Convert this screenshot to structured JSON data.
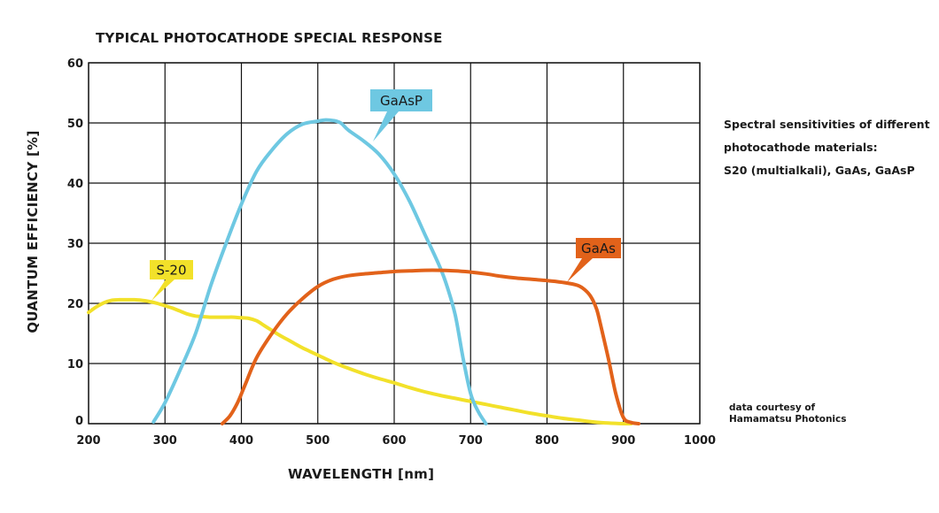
{
  "chart_data": {
    "type": "line",
    "title": "TYPICAL PHOTOCATHODE SPECIAL RESPONSE",
    "xlabel": "WAVELENGTH  [nm]",
    "ylabel": "QUANTUM EFFICIENCY  [%]",
    "xlim": [
      200,
      1000
    ],
    "ylim": [
      0,
      60
    ],
    "x_ticks": [
      "200",
      "300",
      "400",
      "500",
      "600",
      "700",
      "800",
      "900",
      "1000"
    ],
    "y_ticks": [
      "0",
      "10",
      "20",
      "30",
      "40",
      "50",
      "60"
    ],
    "grid": true,
    "legend": "callout labels on curves",
    "series": [
      {
        "name": "S-20",
        "color": "#f2e12a",
        "label_color": "#f2e12a",
        "label_text_color": "#1a1a1a",
        "x": [
          200,
          210,
          220,
          230,
          240,
          250,
          260,
          270,
          280,
          290,
          300,
          310,
          320,
          330,
          340,
          350,
          360,
          370,
          380,
          390,
          400,
          410,
          420,
          430,
          440,
          450,
          460,
          470,
          480,
          490,
          500,
          520,
          540,
          560,
          580,
          600,
          620,
          640,
          660,
          680,
          700,
          720,
          740,
          760,
          780,
          800,
          820,
          840,
          860,
          880,
          900,
          910
        ],
        "y": [
          18.5,
          19.4,
          20.1,
          20.5,
          20.6,
          20.6,
          20.6,
          20.5,
          20.3,
          20.0,
          19.6,
          19.2,
          18.7,
          18.2,
          17.9,
          17.8,
          17.7,
          17.7,
          17.7,
          17.7,
          17.6,
          17.5,
          17.1,
          16.3,
          15.5,
          14.7,
          14.0,
          13.3,
          12.6,
          12.0,
          11.4,
          10.2,
          9.2,
          8.3,
          7.5,
          6.8,
          6.0,
          5.3,
          4.7,
          4.2,
          3.7,
          3.2,
          2.7,
          2.2,
          1.7,
          1.3,
          0.9,
          0.6,
          0.3,
          0.1,
          0.0,
          0.0
        ]
      },
      {
        "name": "GaAsP",
        "color": "#6ec8e2",
        "label_color": "#6ec8e2",
        "label_text_color": "#1a1a1a",
        "x": [
          285,
          300,
          320,
          340,
          360,
          380,
          400,
          420,
          440,
          460,
          480,
          500,
          510,
          520,
          530,
          540,
          560,
          580,
          600,
          620,
          640,
          660,
          670,
          680,
          690,
          700,
          710,
          720
        ],
        "y": [
          0.3,
          3.5,
          9.0,
          15.0,
          23.0,
          30.0,
          36.5,
          42.0,
          45.5,
          48.2,
          49.8,
          50.3,
          50.5,
          50.4,
          50.0,
          48.8,
          47.0,
          44.8,
          41.5,
          37.0,
          31.5,
          26.0,
          22.5,
          18.0,
          11.0,
          5.0,
          2.0,
          0.0
        ]
      },
      {
        "name": "GaAs",
        "color": "#e2621a",
        "label_color": "#e2621a",
        "label_text_color": "#1a1a1a",
        "x": [
          375,
          385,
          395,
          405,
          420,
          440,
          460,
          480,
          500,
          520,
          540,
          560,
          580,
          600,
          620,
          640,
          660,
          680,
          700,
          720,
          740,
          760,
          780,
          800,
          820,
          840,
          850,
          858,
          865,
          870,
          880,
          890,
          900,
          910,
          920
        ],
        "y": [
          0.0,
          1.3,
          3.5,
          6.5,
          11.0,
          15.0,
          18.3,
          20.8,
          22.8,
          24.0,
          24.6,
          24.9,
          25.1,
          25.3,
          25.4,
          25.5,
          25.5,
          25.4,
          25.2,
          24.9,
          24.5,
          24.2,
          24.0,
          23.8,
          23.5,
          23.0,
          22.2,
          21.0,
          19.0,
          16.5,
          11.0,
          5.0,
          1.0,
          0.2,
          0.0
        ]
      }
    ],
    "annotations": {
      "caption": [
        "Spectral sensitivities of different",
        "photocathode materials:",
        "S20 (multialkali), GaAs, GaAsP"
      ],
      "credit": [
        "data courtesy of",
        "Hamamatsu Photonics"
      ]
    }
  }
}
